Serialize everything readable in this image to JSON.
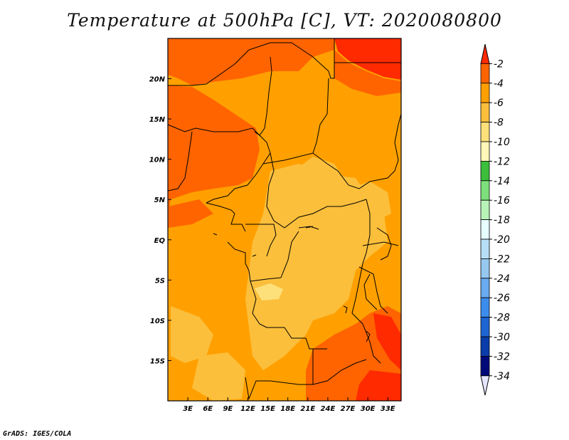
{
  "title": "Temperature at 500hPa [C], VT: 2020080800",
  "footer": "GrADS: IGES/COLA",
  "map": {
    "lon_ticks": [
      "3E",
      "6E",
      "9E",
      "12E",
      "15E",
      "18E",
      "21E",
      "24E",
      "27E",
      "30E",
      "33E"
    ],
    "lat_ticks": [
      "20N",
      "15N",
      "10N",
      "5N",
      "EQ",
      "5S",
      "10S",
      "15S"
    ],
    "lon_values": [
      3,
      6,
      9,
      12,
      15,
      18,
      21,
      24,
      27,
      30,
      33
    ],
    "lat_values": [
      20,
      15,
      10,
      5,
      0,
      -5,
      -10,
      -15
    ],
    "lon_range": [
      0,
      35
    ],
    "lat_range": [
      -20,
      25
    ]
  },
  "colorbar": {
    "labels": [
      "-2",
      "-4",
      "-6",
      "-8",
      "-10",
      "-12",
      "-14",
      "-16",
      "-18",
      "-20",
      "-22",
      "-24",
      "-26",
      "-28",
      "-30",
      "-32",
      "-34"
    ],
    "colors": [
      "#ff2a00",
      "#ff6400",
      "#ffa000",
      "#fbbf3c",
      "#fde07a",
      "#fff6b8",
      "#3cbe3c",
      "#7de07d",
      "#b8f4b8",
      "#e6ffff",
      "#b7def7",
      "#96c8f0",
      "#6aaaf0",
      "#3c8cec",
      "#1e64d2",
      "#0a3caa",
      "#000a78",
      "#e6e6ff"
    ]
  },
  "colors": {
    "deep_red": "#ff2a00",
    "red_orange": "#ff6400",
    "orange": "#ffa000",
    "light_orange": "#fbbf3c",
    "pale_yellow": "#fde07a"
  }
}
